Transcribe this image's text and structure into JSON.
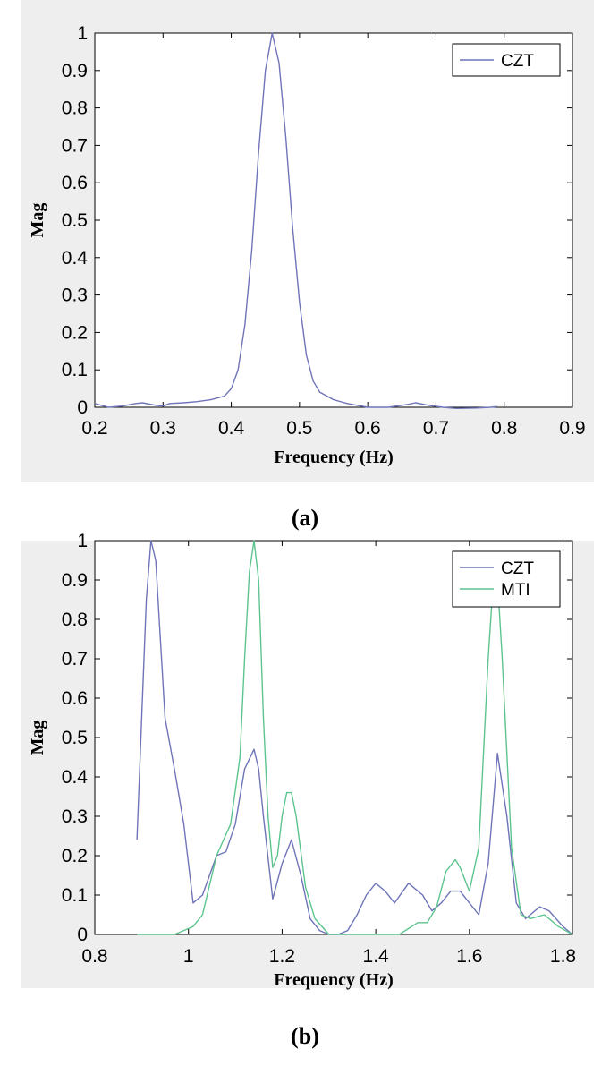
{
  "captions": {
    "a": "(a)",
    "b": "(b)"
  },
  "chart_data": [
    {
      "type": "line",
      "xlabel": "Frequency (Hz)",
      "ylabel": "Mag",
      "xlim": [
        0.2,
        0.9
      ],
      "ylim": [
        0,
        1
      ],
      "xticks": [
        "0.2",
        "0.3",
        "0.4",
        "0.5",
        "0.6",
        "0.7",
        "0.8",
        "0.9"
      ],
      "yticks": [
        "0",
        "0.1",
        "0.2",
        "0.3",
        "0.4",
        "0.5",
        "0.6",
        "0.7",
        "0.8",
        "0.9",
        "1"
      ],
      "legend": {
        "position": "top-right"
      },
      "series": [
        {
          "name": "CZT",
          "color": "#6f74b9",
          "x": [
            0.2,
            0.21,
            0.22,
            0.24,
            0.26,
            0.27,
            0.29,
            0.3,
            0.31,
            0.33,
            0.35,
            0.37,
            0.38,
            0.39,
            0.4,
            0.41,
            0.42,
            0.43,
            0.44,
            0.45,
            0.46,
            0.47,
            0.48,
            0.49,
            0.5,
            0.51,
            0.52,
            0.53,
            0.55,
            0.57,
            0.6,
            0.63,
            0.66,
            0.67,
            0.69,
            0.71,
            0.73,
            0.76,
            0.78,
            0.79
          ],
          "y": [
            0.01,
            0.005,
            0.0,
            0.003,
            0.01,
            0.012,
            0.005,
            0.003,
            0.01,
            0.012,
            0.015,
            0.02,
            0.025,
            0.03,
            0.05,
            0.1,
            0.22,
            0.42,
            0.68,
            0.9,
            1.0,
            0.92,
            0.72,
            0.48,
            0.28,
            0.14,
            0.07,
            0.04,
            0.02,
            0.01,
            0.0,
            0.0,
            0.008,
            0.012,
            0.005,
            0.0,
            -0.003,
            -0.002,
            0.0,
            0.002
          ]
        }
      ]
    },
    {
      "type": "line",
      "xlabel": "Frequency (Hz)",
      "ylabel": "Mag",
      "xlim": [
        0.8,
        1.82
      ],
      "ylim": [
        0,
        1
      ],
      "xticks": [
        "0.8",
        "1",
        "1.2",
        "1.4",
        "1.6",
        "1.8"
      ],
      "yticks": [
        "0",
        "0.1",
        "0.2",
        "0.3",
        "0.4",
        "0.5",
        "0.6",
        "0.7",
        "0.8",
        "0.9",
        "1"
      ],
      "legend": {
        "position": "top-right"
      },
      "series": [
        {
          "name": "CZT",
          "color": "#6f74b9",
          "x": [
            0.89,
            0.9,
            0.91,
            0.92,
            0.93,
            0.95,
            0.97,
            0.99,
            1.01,
            1.03,
            1.06,
            1.08,
            1.1,
            1.12,
            1.14,
            1.15,
            1.16,
            1.18,
            1.2,
            1.22,
            1.24,
            1.26,
            1.28,
            1.3,
            1.32,
            1.34,
            1.36,
            1.38,
            1.4,
            1.42,
            1.44,
            1.47,
            1.5,
            1.52,
            1.54,
            1.56,
            1.58,
            1.6,
            1.62,
            1.64,
            1.66,
            1.68,
            1.7,
            1.72,
            1.75,
            1.77,
            1.8,
            1.82
          ],
          "y": [
            0.24,
            0.55,
            0.85,
            1.0,
            0.95,
            0.55,
            0.42,
            0.28,
            0.08,
            0.1,
            0.2,
            0.21,
            0.28,
            0.42,
            0.47,
            0.42,
            0.3,
            0.09,
            0.18,
            0.24,
            0.15,
            0.04,
            0.01,
            0.0,
            0.0,
            0.01,
            0.05,
            0.1,
            0.13,
            0.11,
            0.08,
            0.13,
            0.1,
            0.06,
            0.08,
            0.11,
            0.11,
            0.08,
            0.05,
            0.18,
            0.46,
            0.3,
            0.08,
            0.04,
            0.07,
            0.06,
            0.02,
            0.0
          ]
        },
        {
          "name": "MTI",
          "color": "#5cc48f",
          "x": [
            0.89,
            0.93,
            0.97,
            0.99,
            1.01,
            1.03,
            1.06,
            1.09,
            1.11,
            1.12,
            1.13,
            1.14,
            1.15,
            1.16,
            1.17,
            1.18,
            1.19,
            1.2,
            1.21,
            1.22,
            1.23,
            1.25,
            1.27,
            1.3,
            1.35,
            1.4,
            1.45,
            1.49,
            1.51,
            1.53,
            1.55,
            1.57,
            1.58,
            1.6,
            1.62,
            1.64,
            1.65,
            1.66,
            1.67,
            1.69,
            1.71,
            1.73,
            1.76,
            1.79,
            1.82
          ],
          "y": [
            0.0,
            0.0,
            0.0,
            0.01,
            0.02,
            0.05,
            0.2,
            0.28,
            0.45,
            0.7,
            0.92,
            1.0,
            0.9,
            0.55,
            0.3,
            0.17,
            0.2,
            0.3,
            0.36,
            0.36,
            0.3,
            0.12,
            0.04,
            0.0,
            0.0,
            0.0,
            0.0,
            0.03,
            0.03,
            0.07,
            0.16,
            0.19,
            0.17,
            0.11,
            0.22,
            0.7,
            0.88,
            0.9,
            0.7,
            0.22,
            0.05,
            0.04,
            0.05,
            0.02,
            0.0
          ]
        }
      ]
    }
  ]
}
